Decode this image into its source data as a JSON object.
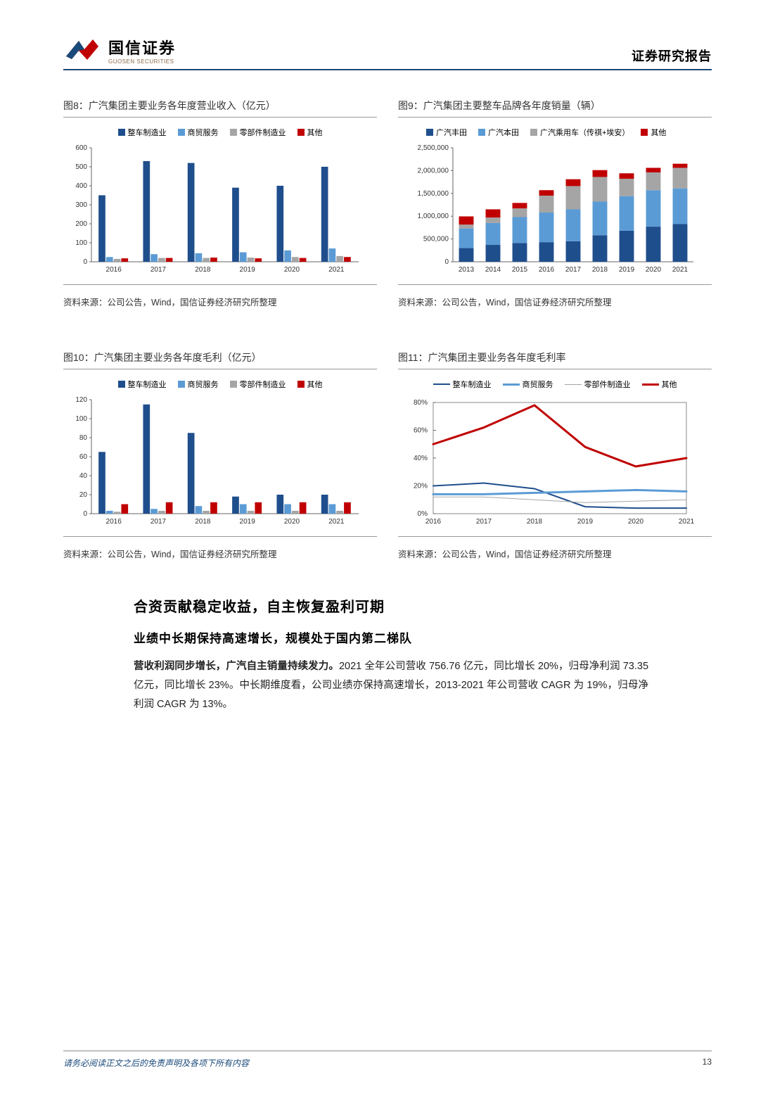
{
  "header": {
    "logo_cn": "国信证券",
    "logo_en": "GUOSEN SECURITIES",
    "right": "证券研究报告"
  },
  "colors": {
    "primary": "#1a4a7a",
    "series1": "#1f4e8c",
    "series2": "#5b9bd5",
    "series3": "#a5a5a5",
    "series4": "#c00000",
    "line_other": "#c00000"
  },
  "chart8": {
    "title": "图8：广汽集团主要业务各年度营业收入（亿元）",
    "source": "资料来源：公司公告，Wind，国信证券经济研究所整理",
    "legend": [
      "整车制造业",
      "商贸服务",
      "零部件制造业",
      "其他"
    ],
    "years": [
      "2016",
      "2017",
      "2018",
      "2019",
      "2020",
      "2021"
    ],
    "ylim": [
      0,
      600
    ],
    "ystep": 100,
    "series": [
      [
        350,
        530,
        520,
        390,
        400,
        500
      ],
      [
        25,
        40,
        45,
        50,
        60,
        70
      ],
      [
        15,
        20,
        20,
        22,
        25,
        30
      ],
      [
        18,
        20,
        22,
        18,
        20,
        25
      ]
    ],
    "series_colors": [
      "#1f4e8c",
      "#5b9bd5",
      "#a5a5a5",
      "#c00000"
    ]
  },
  "chart9": {
    "title": "图9：广汽集团主要整车品牌各年度销量（辆）",
    "source": "资料来源：公司公告，Wind，国信证券经济研究所整理",
    "legend": [
      "广汽丰田",
      "广汽本田",
      "广汽乘用车（传祺+埃安）",
      "其他"
    ],
    "years": [
      "2013",
      "2014",
      "2015",
      "2016",
      "2017",
      "2018",
      "2019",
      "2020",
      "2021"
    ],
    "ylim": [
      0,
      2500000
    ],
    "ystep": 500000,
    "ytick_labels": [
      "0",
      "500,000",
      "1,000,000",
      "1,500,000",
      "2,000,000",
      "2,500,000"
    ],
    "series": [
      [
        300000,
        370000,
        410000,
        430000,
        450000,
        580000,
        680000,
        770000,
        830000
      ],
      [
        430000,
        480000,
        570000,
        650000,
        700000,
        740000,
        760000,
        800000,
        780000
      ],
      [
        85000,
        120000,
        190000,
        370000,
        510000,
        540000,
        380000,
        390000,
        450000
      ],
      [
        180000,
        180000,
        120000,
        120000,
        150000,
        150000,
        120000,
        100000,
        90000
      ]
    ],
    "series_colors": [
      "#1f4e8c",
      "#5b9bd5",
      "#a5a5a5",
      "#c00000"
    ]
  },
  "chart10": {
    "title": "图10：广汽集团主要业务各年度毛利（亿元）",
    "source": "资料来源：公司公告，Wind，国信证券经济研究所整理",
    "legend": [
      "整车制造业",
      "商贸服务",
      "零部件制造业",
      "其他"
    ],
    "years": [
      "2016",
      "2017",
      "2018",
      "2019",
      "2020",
      "2021"
    ],
    "ylim": [
      0,
      120
    ],
    "ystep": 20,
    "series": [
      [
        65,
        115,
        85,
        18,
        20,
        20
      ],
      [
        3,
        5,
        8,
        10,
        10,
        10
      ],
      [
        2,
        3,
        3,
        3,
        3,
        3
      ],
      [
        10,
        12,
        12,
        12,
        12,
        12
      ]
    ],
    "series_colors": [
      "#1f4e8c",
      "#5b9bd5",
      "#a5a5a5",
      "#c00000"
    ]
  },
  "chart11": {
    "title": "图11：广汽集团主要业务各年度毛利率",
    "source": "资料来源：公司公告，Wind，国信证券经济研究所整理",
    "legend": [
      "整车制造业",
      "商贸服务",
      "零部件制造业",
      "其他"
    ],
    "years": [
      "2016",
      "2017",
      "2018",
      "2019",
      "2020",
      "2021"
    ],
    "ylim": [
      0,
      80
    ],
    "ystep": 20,
    "ysuffix": "%",
    "lines": [
      {
        "color": "#1f4e8c",
        "width": 2,
        "values": [
          20,
          22,
          18,
          5,
          4,
          4
        ]
      },
      {
        "color": "#5b9bd5",
        "width": 3,
        "values": [
          14,
          14,
          15,
          16,
          17,
          16
        ]
      },
      {
        "color": "#a5a5a5",
        "width": 1,
        "values": [
          12,
          12,
          10,
          8,
          9,
          10
        ]
      },
      {
        "color": "#c00000",
        "width": 3,
        "values": [
          50,
          62,
          78,
          48,
          34,
          40
        ]
      }
    ]
  },
  "body": {
    "h1": "合资贡献稳定收益，自主恢复盈利可期",
    "h2": "业绩中长期保持高速增长，规模处于国内第二梯队",
    "para_bold": "营收利润同步增长，广汽自主销量持续发力。",
    "para_rest": "2021 全年公司营收 756.76 亿元，同比增长 20%，归母净利润 73.35 亿元，同比增长 23%。中长期维度看，公司业绩亦保持高速增长，2013-2021 年公司营收 CAGR 为 19%，归母净利润 CAGR 为 13%。"
  },
  "footer": {
    "left": "请务必阅读正文之后的免责声明及各项下所有内容",
    "page": "13"
  }
}
